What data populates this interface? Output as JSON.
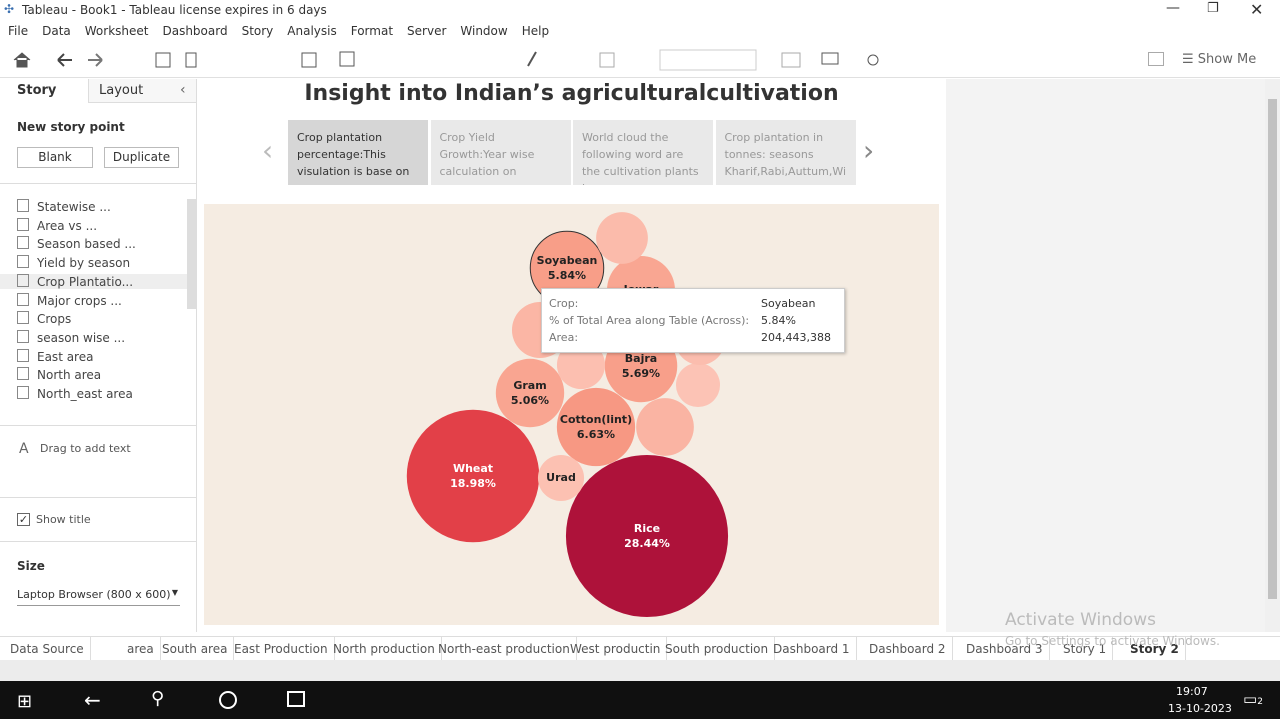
{
  "window": {
    "title": "Tableau - Book1 - Tableau license expires in 6 days"
  },
  "menu": [
    "File",
    "Data",
    "Worksheet",
    "Dashboard",
    "Story",
    "Analysis",
    "Format",
    "Server",
    "Window",
    "Help"
  ],
  "toolbar": {
    "show_me": "Show Me"
  },
  "story_pane": {
    "tabs": [
      "Story",
      "Layout"
    ],
    "new_story_point": "New story point",
    "buttons": [
      "Blank",
      "Duplicate"
    ],
    "sheets": [
      "Statewise ...",
      "Area vs ...",
      "Season based ...",
      "Yield by season",
      "Crop Plantatio...",
      "Major crops ...",
      "Crops",
      "season wise ...",
      "East area",
      "North area",
      "North_east area"
    ],
    "drag_text": "Drag to add text",
    "show_title": "Show title",
    "size_label": "Size",
    "size_value": "Laptop Browser (800 x 600)"
  },
  "story": {
    "title": "Insight into Indian’s agriculturalcultivation",
    "points": [
      "Crop plantation percentage:This visulation is base on",
      "Crop Yield Growth:Year wise calculation on seasons",
      "World cloud the following word are the cultivation plants in",
      "Crop plantation in tonnes: seasons Kharif,Rabi,Auttum,Wi"
    ]
  },
  "chart_data": {
    "type": "bubble",
    "categories": [
      "Rice",
      "Wheat",
      "Cotton(lint)",
      "Soyabean",
      "Bajra",
      "Gram",
      "Jowar",
      "Urad",
      null,
      null,
      null,
      null,
      null,
      null
    ],
    "values": [
      28.44,
      18.98,
      6.63,
      5.84,
      5.69,
      5.06,
      5.0,
      2.3,
      2.9,
      3.4,
      2.5,
      2.1,
      3.6,
      2.7
    ],
    "value_labels": [
      "28.44%",
      "18.98%",
      "6.63%",
      "5.84%",
      "5.69%",
      "5.06%",
      null,
      null,
      null,
      null,
      null,
      null,
      null,
      null
    ]
  },
  "tooltip": {
    "rows": [
      [
        "Crop:",
        "Soyabean"
      ],
      [
        "% of Total Area along Table (Across):",
        "5.84%"
      ],
      [
        "Area:",
        "204,443,388"
      ]
    ]
  },
  "sheet_tabs": [
    "Data Source",
    "area",
    "South area",
    "East Production",
    "North production",
    "North-east production",
    "West productin",
    "South production",
    "Dashboard 1",
    "Dashboard 2",
    "Dashboard 3",
    "Story 1",
    "Story 2"
  ],
  "watermark": [
    "Activate Windows",
    "Go to Settings to activate Windows."
  ],
  "taskbar": {
    "time": "19:07",
    "date": "13-10-2023",
    "notifications": "2"
  }
}
